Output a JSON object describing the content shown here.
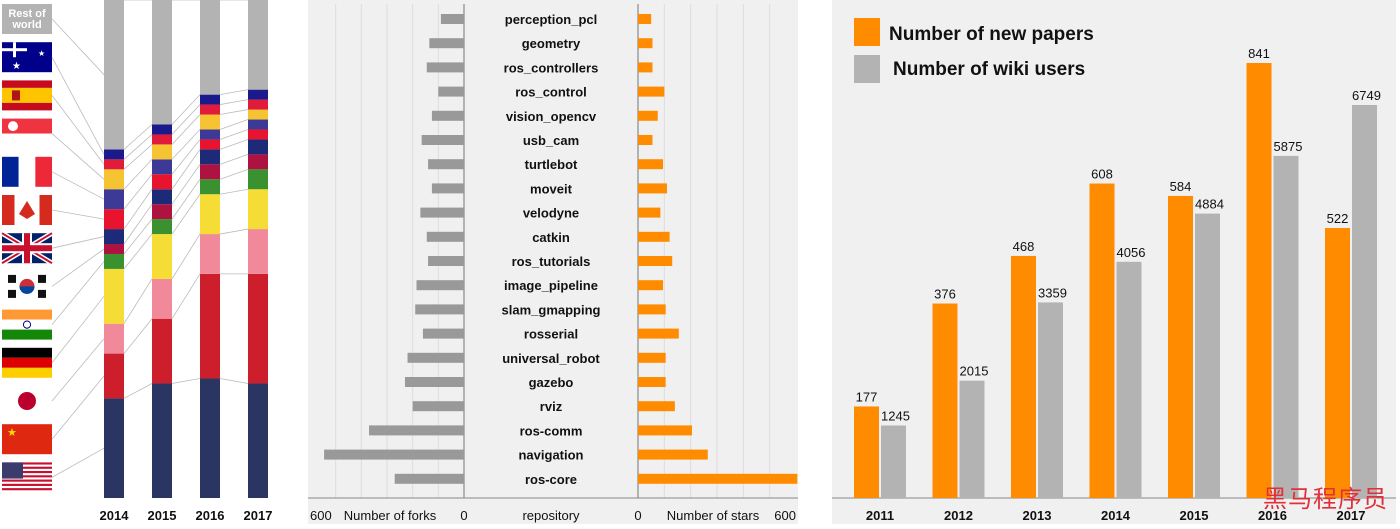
{
  "chart_data": [
    {
      "type": "stacked_bar",
      "categories": [
        "2014",
        "2015",
        "2016",
        "2017"
      ],
      "ylim": [
        0,
        1
      ],
      "colors": {
        "us": "#2a3562",
        "cn": "#cc1f2b",
        "jp": "#f0899a",
        "de": "#f6dd35",
        "in": "#3a9130",
        "kr": "#ae1240",
        "gb": "#1d2a78",
        "ca": "#e8132e",
        "fr": "#3c3a96",
        "sg": "#f6c332",
        "es": "#e01c3a",
        "au": "#1a1a8c",
        "rest": "#b3b3b3"
      },
      "series": [
        {
          "key": "us",
          "values": [
            0.2,
            0.23,
            0.24,
            0.23
          ]
        },
        {
          "key": "cn",
          "values": [
            0.09,
            0.13,
            0.21,
            0.22
          ]
        },
        {
          "key": "jp",
          "values": [
            0.06,
            0.08,
            0.08,
            0.09
          ]
        },
        {
          "key": "de",
          "values": [
            0.11,
            0.09,
            0.08,
            0.08
          ]
        },
        {
          "key": "in",
          "values": [
            0.03,
            0.03,
            0.03,
            0.04
          ]
        },
        {
          "key": "kr",
          "values": [
            0.02,
            0.03,
            0.03,
            0.03
          ]
        },
        {
          "key": "gb",
          "values": [
            0.03,
            0.03,
            0.03,
            0.03
          ]
        },
        {
          "key": "ca",
          "values": [
            0.04,
            0.03,
            0.02,
            0.02
          ]
        },
        {
          "key": "fr",
          "values": [
            0.04,
            0.03,
            0.02,
            0.02
          ]
        },
        {
          "key": "sg",
          "values": [
            0.04,
            0.03,
            0.03,
            0.02
          ]
        },
        {
          "key": "es",
          "values": [
            0.02,
            0.02,
            0.02,
            0.02
          ]
        },
        {
          "key": "au",
          "values": [
            0.02,
            0.02,
            0.02,
            0.02
          ]
        },
        {
          "key": "rest",
          "values": [
            0.3,
            0.25,
            0.19,
            0.18
          ]
        }
      ],
      "legend_label": "Rest of\nworld",
      "legend_order": [
        "rest",
        "au",
        "es",
        "sg",
        "fr",
        "ca",
        "gb",
        "kr",
        "in",
        "de",
        "jp",
        "cn",
        "us"
      ]
    },
    {
      "type": "bar",
      "orientation": "horizontal",
      "categories": [
        "perception_pcl",
        "geometry",
        "ros_controllers",
        "ros_control",
        "vision_opencv",
        "usb_cam",
        "turtlebot",
        "moveit",
        "velodyne",
        "catkin",
        "ros_tutorials",
        "image_pipeline",
        "slam_gmapping",
        "rosserial",
        "universal_robot",
        "gazebo",
        "rviz",
        "ros-comm",
        "navigation",
        "ros-core"
      ],
      "series": [
        {
          "name": "Number of forks",
          "color": "#999999",
          "values": [
            90,
            135,
            145,
            100,
            125,
            165,
            140,
            125,
            170,
            145,
            140,
            185,
            190,
            160,
            220,
            230,
            200,
            370,
            545,
            270
          ]
        },
        {
          "name": "Number of stars",
          "color": "#ff8c00",
          "values": [
            50,
            55,
            55,
            100,
            75,
            55,
            95,
            110,
            85,
            120,
            130,
            95,
            105,
            155,
            105,
            105,
            140,
            205,
            265,
            605
          ]
        }
      ],
      "xlim": [
        0,
        600
      ],
      "tick_labels": {
        "left_min": "600",
        "left_zero": "0",
        "right_zero": "0",
        "right_max": "600"
      },
      "axis_titles": {
        "left": "Number of forks",
        "center": "repository",
        "right": "Number of stars"
      }
    },
    {
      "type": "bar",
      "categories": [
        "2011",
        "2012",
        "2013",
        "2014",
        "2015",
        "2016",
        "2017"
      ],
      "series": [
        {
          "name": "Number of new papers",
          "color": "#ff8c00",
          "values": [
            177,
            376,
            468,
            608,
            584,
            841,
            522
          ]
        },
        {
          "name": "Number of wiki users",
          "color": "#b3b3b3",
          "values": [
            1245,
            2015,
            3359,
            4056,
            4884,
            5875,
            6749
          ]
        }
      ],
      "value_labels": {
        "papers": [
          "177",
          "376",
          "468",
          "608",
          "584",
          "841",
          "522"
        ],
        "users": [
          "1245",
          "2015",
          "3359",
          "4056",
          "4884",
          "5875",
          "6749"
        ]
      },
      "scales": {
        "papers_max": 841,
        "users_max": 6749
      }
    }
  ],
  "watermark": "黑马程序员"
}
